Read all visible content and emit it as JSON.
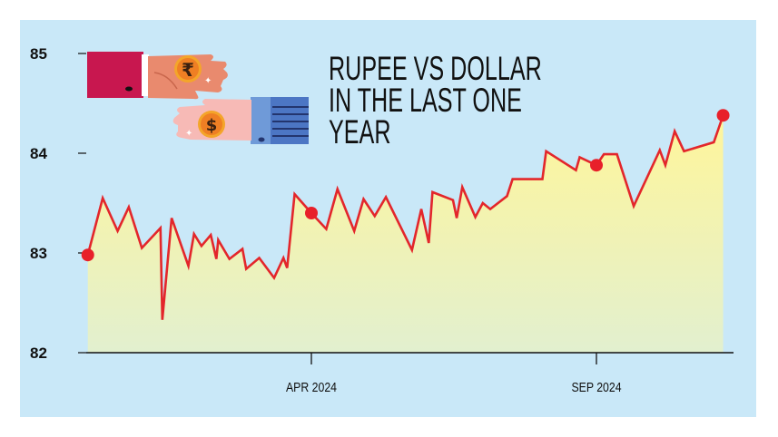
{
  "chart_data": {
    "type": "area",
    "title": [
      "RUPEE VS DOLLAR",
      "IN THE LAST ONE",
      "YEAR"
    ],
    "xlabel": "",
    "ylabel": "",
    "ylim": [
      82,
      85
    ],
    "xlim": [
      "2023-12-03",
      "2024-11-08"
    ],
    "yticks": [
      82,
      83,
      84,
      85
    ],
    "xticks": [
      {
        "date": "2024-04-01",
        "label": "APR 2024"
      },
      {
        "date": "2024-09-01",
        "label": "SEP 2024"
      }
    ],
    "grid": false,
    "colors": {
      "background": "#c9e8f8",
      "line": "#e3262b",
      "fill_top": "#fff59a",
      "fill_bottom": "#e2f0cf",
      "marker": "#e8202a"
    },
    "markers": [
      "2023-12-03",
      "2024-04-01",
      "2024-09-01",
      "2024-11-08"
    ],
    "x": [
      "2023-12-03",
      "2023-12-11",
      "2023-12-19",
      "2023-12-25",
      "2024-01-01",
      "2024-01-11",
      "2024-01-12",
      "2024-01-17",
      "2024-01-26",
      "2024-01-29",
      "2024-02-02",
      "2024-02-07",
      "2024-02-10",
      "2024-02-11",
      "2024-02-17",
      "2024-02-24",
      "2024-02-26",
      "2024-03-04",
      "2024-03-12",
      "2024-03-17",
      "2024-03-19",
      "2024-03-23",
      "2024-04-01",
      "2024-04-09",
      "2024-04-15",
      "2024-04-24",
      "2024-04-29",
      "2024-05-05",
      "2024-05-11",
      "2024-05-25",
      "2024-05-30",
      "2024-06-03",
      "2024-06-05",
      "2024-06-16",
      "2024-06-18",
      "2024-06-21",
      "2024-06-28",
      "2024-07-02",
      "2024-07-06",
      "2024-07-15",
      "2024-07-18",
      "2024-08-03",
      "2024-08-05",
      "2024-08-21",
      "2024-08-23",
      "2024-09-01",
      "2024-09-05",
      "2024-09-12",
      "2024-09-21",
      "2024-10-05",
      "2024-10-08",
      "2024-10-13",
      "2024-10-18",
      "2024-11-03",
      "2024-11-08"
    ],
    "values": [
      82.98,
      83.55,
      83.22,
      83.46,
      83.05,
      83.25,
      82.33,
      83.35,
      82.87,
      83.19,
      83.07,
      83.18,
      82.94,
      83.13,
      82.94,
      83.04,
      82.84,
      82.95,
      82.75,
      82.95,
      82.85,
      83.59,
      83.4,
      83.24,
      83.64,
      83.22,
      83.54,
      83.37,
      83.56,
      83.03,
      83.44,
      83.1,
      83.61,
      83.53,
      83.35,
      83.66,
      83.36,
      83.5,
      83.44,
      83.57,
      83.74,
      83.74,
      84.02,
      83.83,
      83.96,
      83.88,
      83.99,
      83.99,
      83.47,
      84.03,
      83.88,
      84.22,
      84.02,
      84.11,
      84.38
    ]
  },
  "illustration": {
    "icons": [
      "rupee-coin-icon",
      "dollar-coin-icon"
    ]
  }
}
